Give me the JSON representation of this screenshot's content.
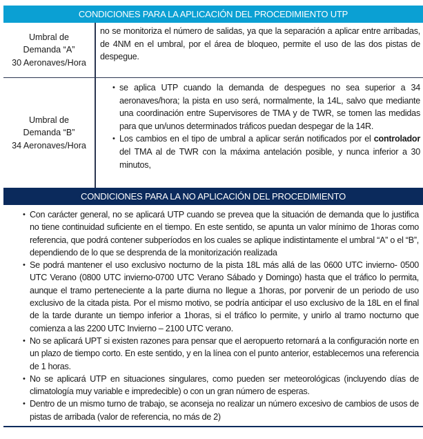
{
  "section1": {
    "title": "CONDICIONES PARA LA APLICACIÓN DEL PROCEDIMIENTO UTP",
    "rows": [
      {
        "label_lines": [
          "Umbral de",
          "Demanda “A”",
          "30 Aeronaves/Hora"
        ],
        "text": "no se monitoriza el número de salidas, ya que la separación a aplicar entre arribadas, de 4NM en el umbral, por el área de bloqueo, permite el uso de las dos pistas de despegue."
      },
      {
        "label_lines": [
          "Umbral de",
          "Demanda “B”",
          "34 Aeronaves/Hora"
        ],
        "bullets": [
          "se aplica UTP cuando la demanda de despegues no sea superior a 34 aeronaves/hora; la pista en uso será, normalmente, la 14L, salvo que mediante una coordinación entre Supervisores de TMA y de TWR, se tomen las medidas para que un/unos determinados tráficos puedan despegar de la 14R."
        ],
        "bullet2_before": "Los cambios en el tipo de umbral a aplicar serán notificados por el ",
        "bullet2_bold": "controlador",
        "bullet2_after": " del TMA al de TWR con la máxima antelación posible, y nunca inferior a 30 minutos,"
      }
    ]
  },
  "section2": {
    "title": "CONDICIONES PARA LA NO APLICACIÓN DEL PROCEDIMIENTO",
    "bullets": [
      "Con carácter general, no se aplicará UTP cuando se prevea que la situación de demanda que lo justifica no tiene continuidad suficiente en el tiempo.  En este sentido, se apunta un valor mínimo de 1horas como referencia, que podrá contener subperíodos en los cuales se aplique indistintamente el umbral “A” o el “B”, dependiendo de lo que se desprenda de la monitorización realizada",
      "Se podrá mantener el uso exclusivo nocturno de la pista 18L más allá de las 0600 UTC invierno- 0500 UTC Verano (0800 UTC invierno-0700 UTC Verano Sábado y Domingo) hasta que el tráfico lo permita, aunque el tramo perteneciente a la parte diurna no llegue a 1horas, por porvenir de un periodo de uso exclusivo de la citada pista. Por el mismo motivo, se podría anticipar el uso exclusivo de la 18L en el final de la tarde durante un tiempo inferior a 1horas, si el tráfico lo permite, y unirlo al tramo nocturno que comienza a las 2200 UTC Invierno – 2100 UTC verano.",
      "No se aplicará UPT si existen razones para pensar que el aeropuerto retornará a la configuración norte en un plazo de tiempo corto. En este sentido, y en la línea con el punto anterior, establecemos una referencia de 1 horas.",
      "No se aplicará UTP en situaciones singulares, como pueden ser meteorológicas (incluyendo días de climatología muy variable e impredecible) o con un gran número de esperas.",
      "Dentro de un mismo turno de trabajo, se aconseja no realizar un número excesivo de cambios de usos de pistas de arribada (valor de referencia, no más de 2)"
    ]
  },
  "colors": {
    "header1": "#0ba0d3",
    "header2": "#0b2a5c"
  }
}
